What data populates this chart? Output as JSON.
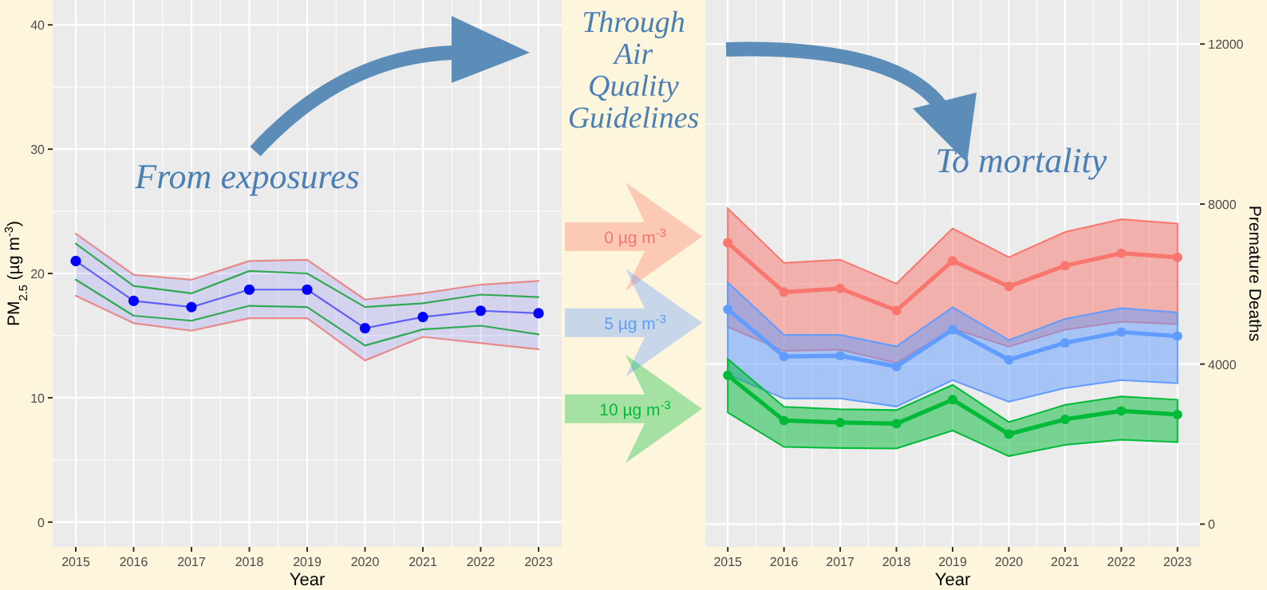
{
  "chart_data": [
    {
      "type": "line",
      "xlabel": "Year",
      "ylabel": "PM$_{2.5}$ (µg m$^{-3}$)",
      "x": [
        2015,
        2016,
        2017,
        2018,
        2019,
        2020,
        2021,
        2022,
        2023
      ],
      "xlim": [
        2014.6,
        2023.4
      ],
      "xticks": [
        2015,
        2016,
        2017,
        2018,
        2019,
        2020,
        2021,
        2022,
        2023
      ],
      "ylim": [
        -2,
        42
      ],
      "yticks": [
        0,
        10,
        20,
        30,
        40
      ],
      "grid": true,
      "marker": "circle",
      "annotations": [
        "From exposures"
      ],
      "series": [
        {
          "color": "#e88a8a",
          "marker": "none",
          "values": [
            23.2,
            19.9,
            19.5,
            21.0,
            21.1,
            17.9,
            18.4,
            19.1,
            19.4
          ]
        },
        {
          "color": "#e88a8a",
          "marker": "none",
          "values": [
            18.2,
            16.0,
            15.4,
            16.4,
            16.4,
            13.0,
            14.9,
            14.4,
            13.9
          ]
        },
        {
          "color": "#33a853",
          "marker": "none",
          "values": [
            22.4,
            19.0,
            18.4,
            20.2,
            20.0,
            17.3,
            17.6,
            18.3,
            18.1
          ]
        },
        {
          "color": "#33a853",
          "marker": "none",
          "values": [
            19.5,
            16.6,
            16.2,
            17.4,
            17.3,
            14.2,
            15.5,
            15.8,
            15.1
          ]
        },
        {
          "color": "#0000ff",
          "values": [
            21.0,
            17.8,
            17.3,
            18.7,
            18.7,
            15.6,
            16.5,
            17.0,
            16.8
          ],
          "lower": [
            18.2,
            16.0,
            15.4,
            16.4,
            16.4,
            13.0,
            14.9,
            14.4,
            13.9
          ],
          "upper": [
            23.2,
            19.9,
            19.5,
            21.0,
            21.1,
            17.9,
            18.4,
            19.1,
            19.4
          ]
        }
      ]
    },
    {
      "type": "line",
      "xlabel": "Year",
      "y2label": "Premature Deaths",
      "x": [
        2015,
        2016,
        2017,
        2018,
        2019,
        2020,
        2021,
        2022,
        2023
      ],
      "xlim": [
        2014.6,
        2023.4
      ],
      "xticks": [
        2015,
        2016,
        2017,
        2018,
        2019,
        2020,
        2021,
        2022,
        2023
      ],
      "y2lim": [
        -570,
        13100
      ],
      "y2ticks": [
        0,
        4000,
        8000,
        12000
      ],
      "grid": true,
      "marker": "circle",
      "legend": "left",
      "annotations": [
        "Through Air Quality Guidelines",
        "To mortality"
      ],
      "series": [
        {
          "name": "0 µg m$^{-3}$",
          "color": "#f8766d",
          "axis": "y2",
          "values": [
            7030,
            5800,
            5890,
            5340,
            6580,
            5940,
            6460,
            6770,
            6670
          ],
          "lower": [
            4930,
            4330,
            4360,
            4030,
            4890,
            4440,
            4860,
            5060,
            5000
          ],
          "upper": [
            7890,
            6530,
            6610,
            6010,
            7390,
            6670,
            7300,
            7620,
            7510
          ]
        },
        {
          "name": "5 µg m$^{-3}$",
          "color": "#619cff",
          "axis": "y2",
          "values": [
            5370,
            4190,
            4210,
            3940,
            4860,
            4110,
            4530,
            4800,
            4700
          ],
          "lower": [
            3740,
            3140,
            3140,
            2940,
            3600,
            3060,
            3400,
            3600,
            3520
          ],
          "upper": [
            6040,
            4730,
            4730,
            4440,
            5420,
            4600,
            5130,
            5400,
            5290
          ]
        },
        {
          "name": "10 µg m$^{-3}$",
          "color": "#00ba38",
          "axis": "y2",
          "values": [
            3720,
            2590,
            2540,
            2510,
            3110,
            2250,
            2620,
            2830,
            2740
          ],
          "lower": [
            2790,
            1930,
            1900,
            1890,
            2340,
            1700,
            1980,
            2110,
            2050
          ],
          "upper": [
            4130,
            2930,
            2870,
            2850,
            3480,
            2550,
            2980,
            3190,
            3110
          ]
        }
      ]
    }
  ]
}
